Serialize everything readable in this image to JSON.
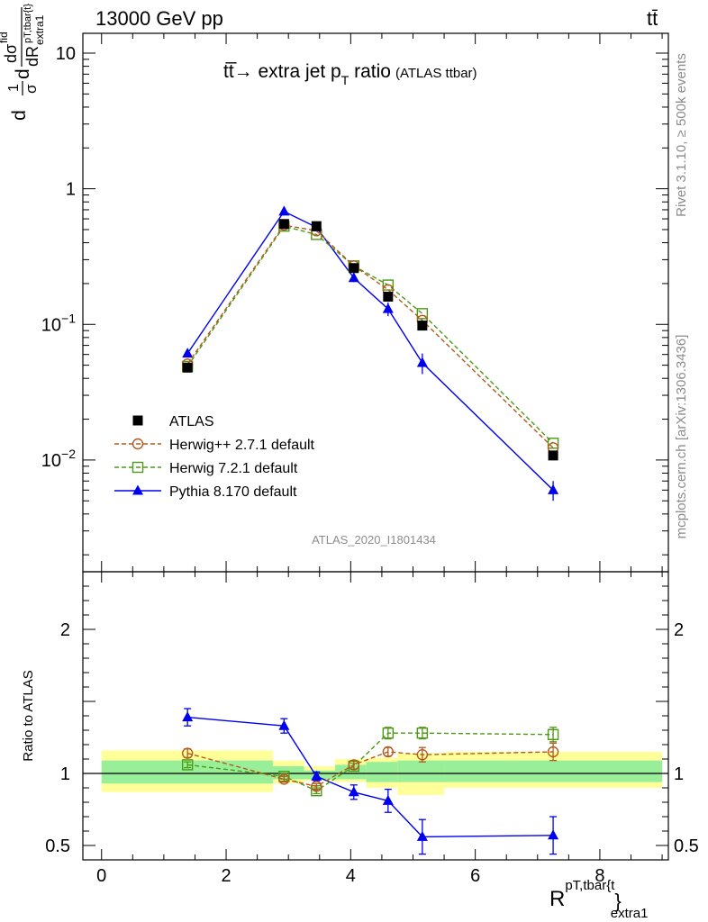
{
  "header": {
    "energy_label": "13000 GeV pp",
    "process_label": "tt̄"
  },
  "side_labels": {
    "rivet": "Rivet 3.1.10, ≥ 500k events",
    "mcplots": "mcplots.cern.ch [arXiv:1306.3436]"
  },
  "chart_data": {
    "type": "line",
    "title": "tt̄→ extra jet pT ratio",
    "title_main": "tt̅→ extra jet p",
    "title_sub_T": "T",
    "title_ratio": " ratio",
    "title_small": "(ATLAS ttbar)",
    "analysis_id": "ATLAS_2020_I1801434",
    "xlabel": "R^{pT,tbar{t}}_{extra1}",
    "xlabel_main": "R",
    "xlabel_sup": "pT,tbar{t",
    "xlabel_brace": "}",
    "xlabel_sub": "extra1",
    "ylabel_main": "1/σ dσ^{fid}/dR^{pT,tbar{t}}_{extra1}",
    "ylabel_ratio": "Ratio to ATLAS",
    "xlim": [
      -0.3,
      9.1
    ],
    "ylim_main": [
      0.0015,
      14
    ],
    "ylim_ratio": [
      0.4,
      2.4
    ],
    "x_ticks": [
      0,
      2,
      4,
      6,
      8
    ],
    "x_tick_labels": [
      "0",
      "2",
      "4",
      "6",
      "8"
    ],
    "y_main_ticks": [
      {
        "v": 0.01,
        "base": "10",
        "exp": "−2"
      },
      {
        "v": 0.1,
        "base": "10",
        "exp": "−1"
      },
      {
        "v": 1,
        "base": "1",
        "exp": ""
      },
      {
        "v": 10,
        "base": "10",
        "exp": ""
      }
    ],
    "y_ratio_ticks": [
      0.5,
      1,
      2
    ],
    "y_ratio_tick_labels": [
      "0.5",
      "1",
      "2"
    ],
    "bins": [
      [
        0.0,
        2.75
      ],
      [
        2.75,
        3.25
      ],
      [
        3.25,
        3.75
      ],
      [
        3.75,
        4.25
      ],
      [
        4.25,
        4.75
      ],
      [
        4.75,
        5.5
      ],
      [
        5.5,
        9.0
      ]
    ],
    "x": [
      1.38,
      2.93,
      3.45,
      4.05,
      4.6,
      5.15,
      7.25
    ],
    "band_green": [
      [
        0.93,
        1.09
      ],
      [
        0.96,
        1.05
      ],
      [
        0.96,
        1.02
      ],
      [
        0.96,
        1.06
      ],
      [
        0.94,
        1.08
      ],
      [
        0.94,
        1.09
      ],
      [
        0.94,
        1.09
      ]
    ],
    "band_yellow": [
      [
        0.87,
        1.16
      ],
      [
        0.93,
        1.09
      ],
      [
        0.95,
        1.05
      ],
      [
        0.94,
        1.1
      ],
      [
        0.9,
        1.11
      ],
      [
        0.85,
        1.14
      ],
      [
        0.9,
        1.15
      ]
    ],
    "series": [
      {
        "name": "ATLAS",
        "color": "#000000",
        "marker": "square-filled",
        "line": "none",
        "values": [
          0.048,
          0.55,
          0.53,
          0.26,
          0.16,
          0.098,
          0.0108
        ],
        "ratio": [
          1,
          1,
          1,
          1,
          1,
          1,
          1
        ],
        "ratio_err": [
          0,
          0,
          0,
          0,
          0,
          0,
          0
        ]
      },
      {
        "name": "Herwig++ 2.7.1 default",
        "color": "#b35a1f",
        "marker": "circle-open",
        "line": "dashed",
        "values": [
          0.051,
          0.54,
          0.49,
          0.27,
          0.18,
          0.107,
          0.0123
        ],
        "ratio": [
          1.14,
          0.96,
          0.91,
          1.06,
          1.15,
          1.13,
          1.15
        ],
        "ratio_err": [
          0.03,
          0.02,
          0.02,
          0.03,
          0.03,
          0.05,
          0.06
        ]
      },
      {
        "name": "Herwig 7.2.1 default",
        "color": "#4c9a16",
        "marker": "square-open",
        "line": "dashed",
        "values": [
          0.049,
          0.53,
          0.46,
          0.27,
          0.195,
          0.12,
          0.0133
        ],
        "ratio": [
          1.06,
          0.98,
          0.88,
          1.05,
          1.28,
          1.28,
          1.27
        ],
        "ratio_err": [
          0.02,
          0.02,
          0.02,
          0.02,
          0.04,
          0.04,
          0.05
        ]
      },
      {
        "name": "Pythia 8.170 default",
        "color": "#0000ee",
        "marker": "triangle-filled",
        "line": "solid",
        "values": [
          0.061,
          0.68,
          0.52,
          0.22,
          0.13,
          0.052,
          0.006
        ],
        "values_err": [
          0.004,
          0.03,
          0.03,
          0.015,
          0.015,
          0.009,
          0.001
        ],
        "ratio": [
          1.39,
          1.33,
          0.98,
          0.87,
          0.81,
          0.56,
          0.57
        ],
        "ratio_err": [
          0.06,
          0.05,
          0.03,
          0.05,
          0.08,
          0.12,
          0.13
        ]
      }
    ]
  }
}
